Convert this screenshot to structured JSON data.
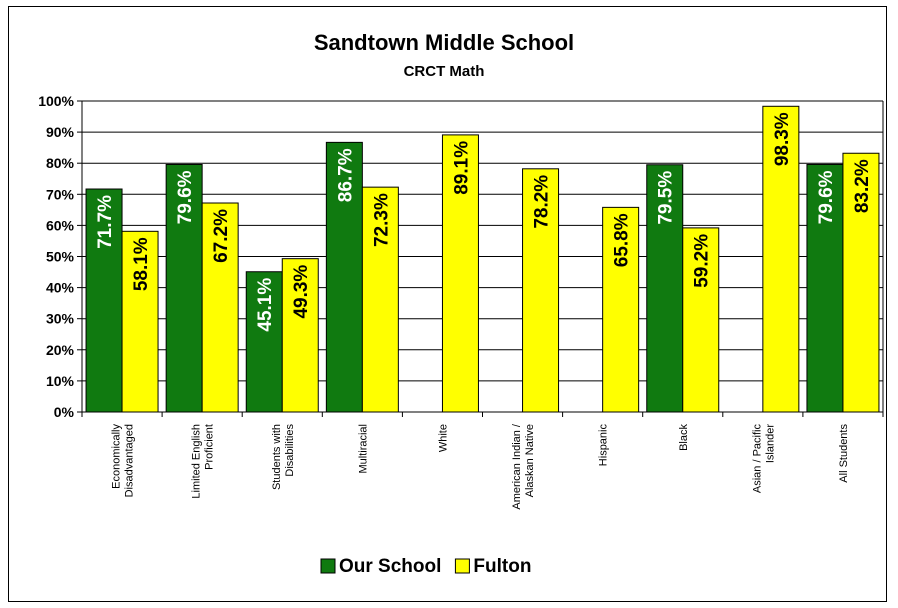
{
  "chart_data": {
    "type": "bar",
    "title": "Sandtown Middle School",
    "subtitle": "CRCT Math",
    "categories": [
      [
        "Economically",
        "Disadvantaged"
      ],
      [
        "Limited English",
        "Proficient"
      ],
      [
        "Students with",
        "Disabilities"
      ],
      [
        "Multiracial"
      ],
      [
        "White"
      ],
      [
        "American Indian /",
        "Alaskan Native"
      ],
      [
        "Hispanic"
      ],
      [
        "Black"
      ],
      [
        "Asian / Pacific",
        "Islander"
      ],
      [
        "All Students"
      ]
    ],
    "series": [
      {
        "name": "Our School",
        "color": "#107a10",
        "label_color": "#ffffff",
        "values": [
          71.7,
          79.6,
          45.1,
          86.7,
          null,
          null,
          null,
          79.5,
          null,
          79.6
        ],
        "labels": [
          "71.7%",
          "79.6%",
          "45.1%",
          "86.7%",
          null,
          null,
          null,
          "79.5%",
          null,
          "79.6%"
        ]
      },
      {
        "name": "Fulton",
        "color": "#ffff00",
        "label_color": "#000000",
        "values": [
          58.1,
          67.2,
          49.3,
          72.3,
          89.1,
          78.2,
          65.8,
          59.2,
          98.3,
          83.2
        ],
        "labels": [
          "58.1%",
          "67.2%",
          "49.3%",
          "72.3%",
          "89.1%",
          "78.2%",
          "65.8%",
          "59.2%",
          "98.3%",
          "83.2%"
        ]
      }
    ],
    "yticks": [
      "0%",
      "10%",
      "20%",
      "30%",
      "40%",
      "50%",
      "60%",
      "70%",
      "80%",
      "90%",
      "100%"
    ],
    "ylim": [
      0,
      100
    ],
    "grid": true,
    "legend": "bottom"
  }
}
